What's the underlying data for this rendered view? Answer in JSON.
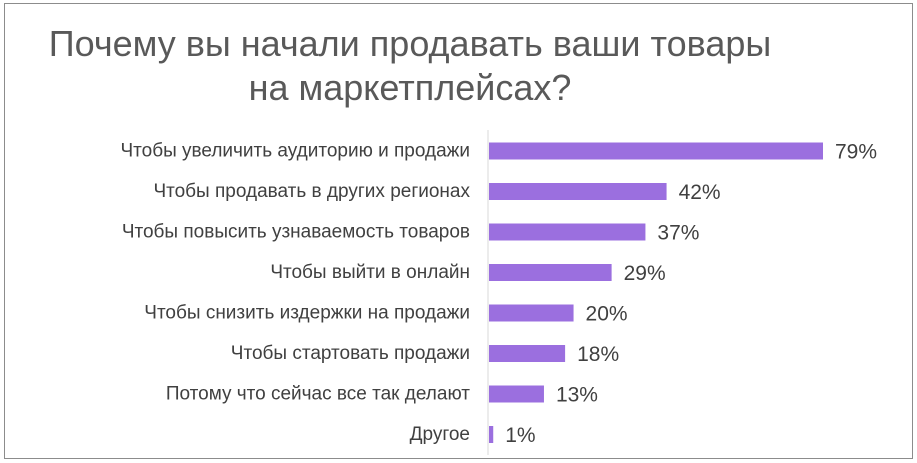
{
  "chart_data": {
    "type": "bar",
    "orientation": "horizontal",
    "title_lines": [
      "Почему вы начали продавать ваши товары",
      "на маркетплейсах?"
    ],
    "categories": [
      "Чтобы увеличить аудиторию и продажи",
      "Чтобы продавать в других регионах",
      "Чтобы повысить узнаваемость товаров",
      "Чтобы выйти в онлайн",
      "Чтобы снизить издержки на продажи",
      "Чтобы стартовать продажи",
      "Потому что сейчас все так делают",
      "Другое"
    ],
    "values": [
      79,
      42,
      37,
      29,
      20,
      18,
      13,
      1
    ],
    "value_labels": [
      "79%",
      "42%",
      "37%",
      "29%",
      "20%",
      "18%",
      "13%",
      "1%"
    ],
    "xlim": [
      0,
      100
    ],
    "grid": false,
    "legend": "none",
    "bar_color": "#9b6fdf"
  }
}
